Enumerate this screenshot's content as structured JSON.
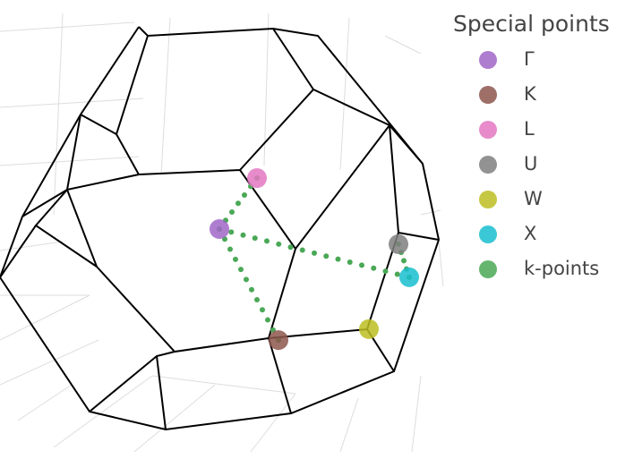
{
  "chart_data": {
    "type": "scatter3d",
    "legend_title": "Special points",
    "xlim": [
      0,
      100
    ],
    "ylim": [
      0,
      100
    ],
    "series": [
      {
        "name": "Γ",
        "color": "#a066c8",
        "x": [
          49.0
        ],
        "y": [
          50.1
        ]
      },
      {
        "name": "K",
        "color": "#8c564b",
        "x": [
          62.2
        ],
        "y": [
          25.9
        ]
      },
      {
        "name": "L",
        "color": "#e377c2",
        "x": [
          57.4
        ],
        "y": [
          61.2
        ]
      },
      {
        "name": "U",
        "color": "#7f7f7f",
        "x": [
          89.0
        ],
        "y": [
          46.8
        ]
      },
      {
        "name": "W",
        "color": "#bcbd22",
        "x": [
          82.4
        ],
        "y": [
          28.3
        ]
      },
      {
        "name": "X",
        "color": "#17becf",
        "x": [
          91.4
        ],
        "y": [
          39.6
        ]
      },
      {
        "name": "k-points",
        "color": "#4aa856",
        "x": [
          57.4,
          56.0,
          54.6,
          53.2,
          51.8,
          50.4,
          49.0,
          null,
          49.0,
          50.2,
          51.4,
          52.6,
          53.8,
          55.0,
          56.2,
          57.4,
          58.6,
          59.8,
          61.0,
          62.2,
          null,
          49.0,
          51.65,
          54.3,
          56.95,
          59.6,
          62.25,
          64.9,
          67.55,
          70.2,
          72.85,
          75.5,
          78.15,
          80.8,
          83.45,
          86.1,
          88.75,
          91.4,
          null,
          89.0,
          89.6,
          90.2,
          90.8,
          91.4
        ],
        "y": [
          61.2,
          59.4,
          57.5,
          55.7,
          53.8,
          52.0,
          50.1,
          null,
          50.1,
          47.9,
          45.7,
          43.5,
          41.3,
          39.1,
          36.9,
          34.7,
          32.5,
          30.3,
          28.1,
          25.9,
          null,
          50.1,
          49.44,
          48.79,
          48.13,
          47.48,
          46.82,
          46.16,
          45.51,
          44.85,
          44.19,
          43.54,
          42.88,
          42.23,
          41.57,
          40.91,
          40.26,
          39.6,
          null,
          46.8,
          45.0,
          43.2,
          41.4,
          39.6
        ]
      }
    ]
  }
}
